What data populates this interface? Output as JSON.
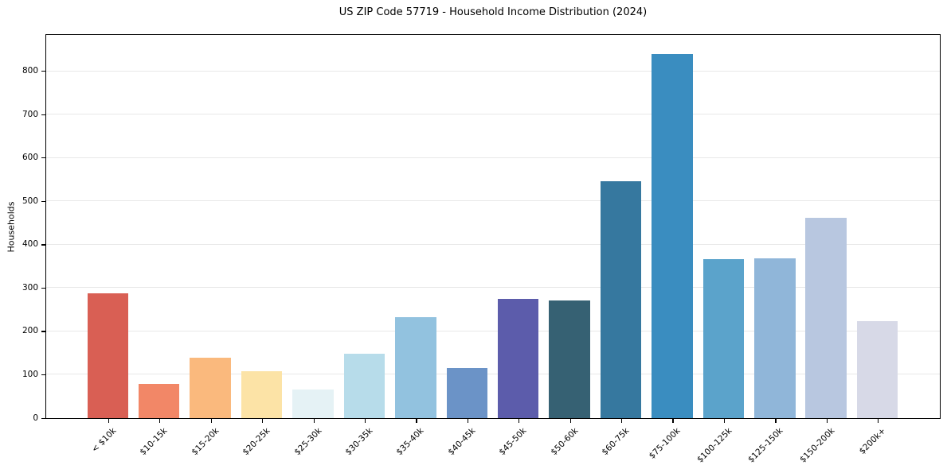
{
  "figure": {
    "background": "#ffffff",
    "text_color": "#000000",
    "grid_color": "#e8e8e8",
    "spine_color": "#000000"
  },
  "chart_data": {
    "type": "bar",
    "title": "US ZIP Code 57719 - Household Income Distribution (2024)",
    "xlabel": "",
    "ylabel": "Households",
    "categories": [
      "< $10k",
      "$10-15k",
      "$15-20k",
      "$20-25k",
      "$25-30k",
      "$30-35k",
      "$35-40k",
      "$40-45k",
      "$45-50k",
      "$50-60k",
      "$60-75k",
      "$75-100k",
      "$100-125k",
      "$125-150k",
      "$150-200k",
      "$200k+"
    ],
    "values": [
      287,
      79,
      140,
      109,
      66,
      148,
      232,
      116,
      275,
      272,
      546,
      839,
      366,
      368,
      463,
      224
    ],
    "bar_colors": [
      "#d95f54",
      "#f28767",
      "#fab97d",
      "#fce3a6",
      "#e5f2f5",
      "#b7dcea",
      "#92c2df",
      "#6b93c7",
      "#5c5cab",
      "#366173",
      "#36789f",
      "#3a8dc0",
      "#5ba3cb",
      "#90b6d9",
      "#b8c7e0",
      "#d7d9e7"
    ],
    "ylim": [
      0,
      882
    ],
    "yticks": [
      0,
      100,
      200,
      300,
      400,
      500,
      600,
      700,
      800
    ],
    "grid": "horizontal",
    "legend": "none",
    "bar_width_fraction": 0.8,
    "x_axis_units_range": 17.4,
    "x_axis_left_pad_units": 1.2
  }
}
